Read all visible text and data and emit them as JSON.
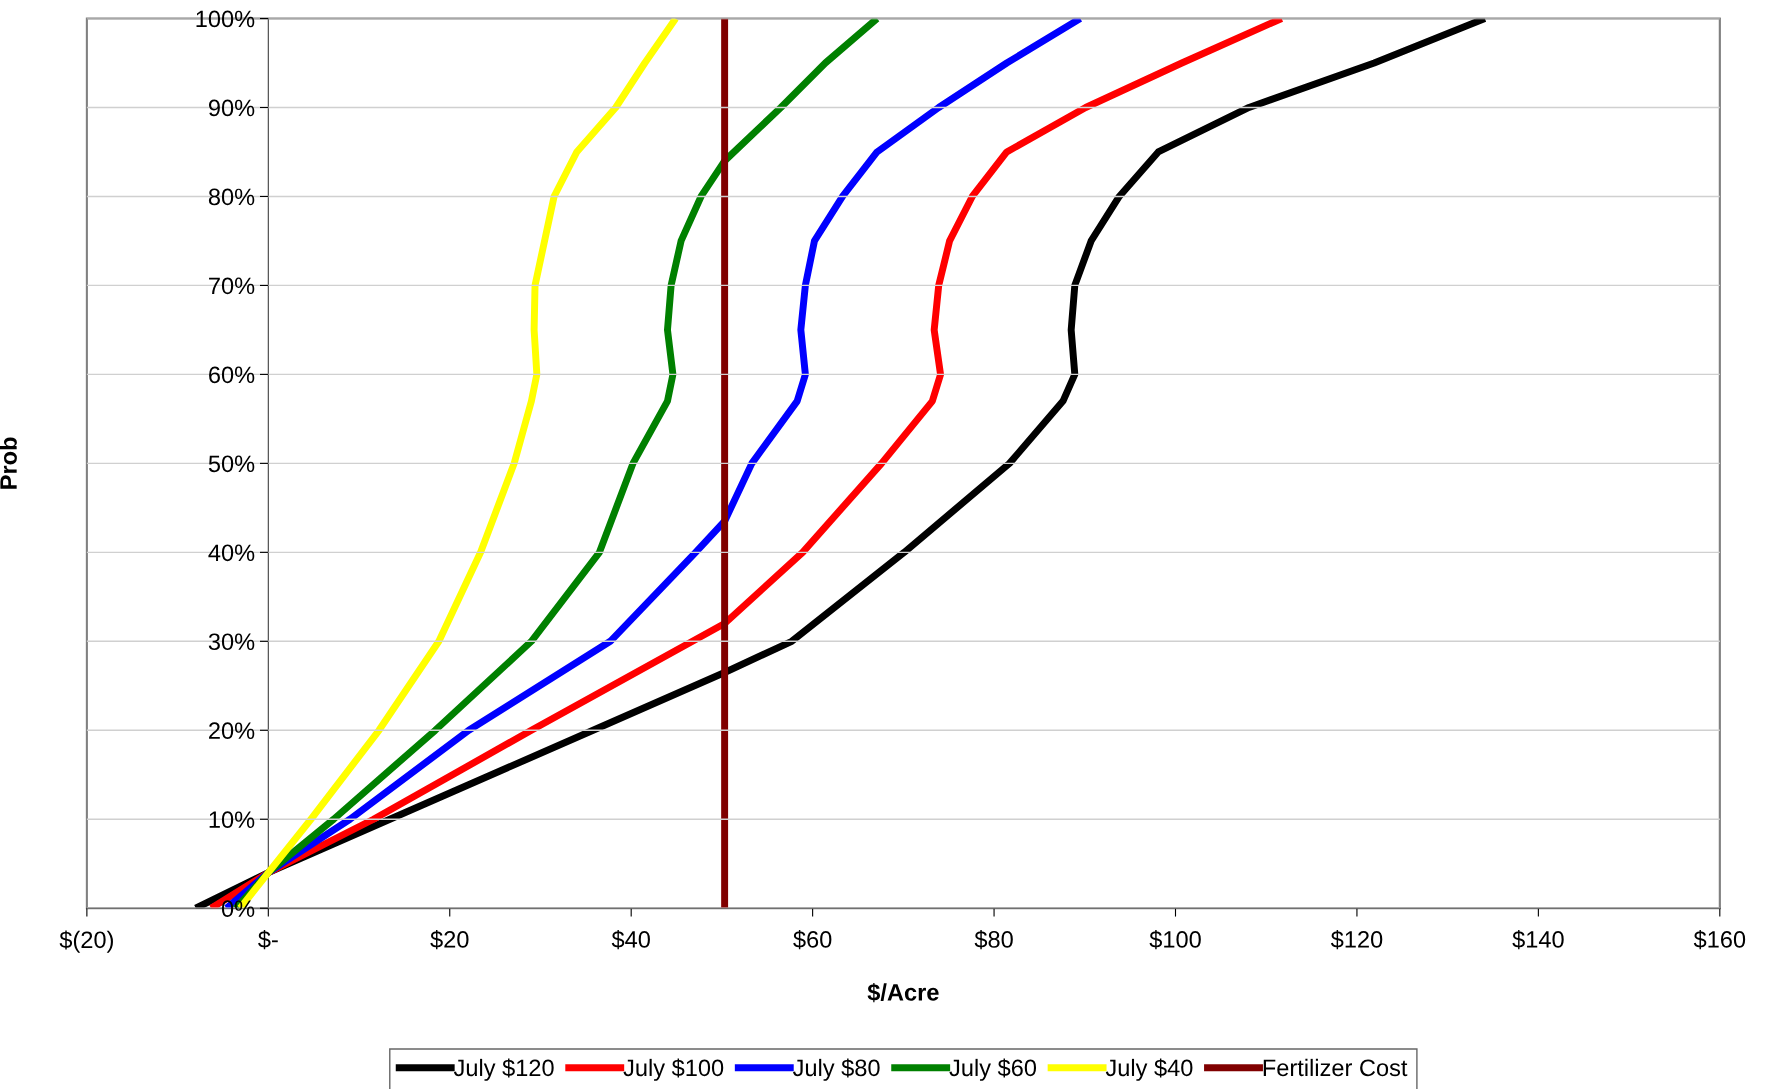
{
  "chart_data": {
    "type": "line",
    "xlabel": "$/Acre",
    "ylabel": "Prob",
    "xlim": [
      -20,
      160
    ],
    "ylim": [
      0,
      100
    ],
    "xticks": [
      {
        "value": -20,
        "label": "$(20)"
      },
      {
        "value": 0,
        "label": "$-"
      },
      {
        "value": 20,
        "label": "$20"
      },
      {
        "value": 40,
        "label": "$40"
      },
      {
        "value": 60,
        "label": "$60"
      },
      {
        "value": 80,
        "label": "$80"
      },
      {
        "value": 100,
        "label": "$100"
      },
      {
        "value": 120,
        "label": "$120"
      },
      {
        "value": 140,
        "label": "$140"
      },
      {
        "value": 160,
        "label": "$160"
      }
    ],
    "yticks": [
      {
        "value": 0,
        "label": "0%"
      },
      {
        "value": 10,
        "label": "10%"
      },
      {
        "value": 20,
        "label": "20%"
      },
      {
        "value": 30,
        "label": "30%"
      },
      {
        "value": 40,
        "label": "40%"
      },
      {
        "value": 50,
        "label": "50%"
      },
      {
        "value": 60,
        "label": "60%"
      },
      {
        "value": 70,
        "label": "70%"
      },
      {
        "value": 80,
        "label": "80%"
      },
      {
        "value": 90,
        "label": "90%"
      },
      {
        "value": 100,
        "label": "100%"
      }
    ],
    "grid": "y",
    "legend": "bottom",
    "marker": "none",
    "line_style": "solid",
    "series": [
      {
        "name": "July $120",
        "color": "#000000",
        "x": [
          -8.0,
          0,
          13.4,
          35.8,
          50.3,
          57.7,
          70.1,
          81.7,
          87.6,
          88.9,
          88.5,
          88.9,
          90.7,
          93.8,
          98.1,
          108.1,
          121.9,
          134.1
        ],
        "values": [
          0,
          4,
          10,
          20,
          26.5,
          30,
          40,
          50,
          57,
          60,
          65,
          70,
          75,
          80,
          85,
          90,
          95,
          100
        ]
      },
      {
        "name": "July $100",
        "color": "#ff0000",
        "x": [
          -6.3,
          0,
          11.6,
          29,
          50.3,
          58.9,
          67.6,
          73.2,
          74.1,
          73.4,
          73.9,
          75.1,
          77.6,
          81.4,
          90.1,
          100.7,
          111.7
        ],
        "values": [
          0,
          4,
          10,
          20,
          32,
          40,
          50,
          57,
          60,
          65,
          70,
          75,
          80,
          85,
          90,
          95,
          100
        ]
      },
      {
        "name": "July $80",
        "color": "#0000ff",
        "x": [
          -4.6,
          0,
          9,
          22.1,
          37.7,
          47.1,
          50.3,
          53.3,
          58.3,
          59.2,
          58.7,
          59.2,
          60.2,
          63.3,
          67.1,
          73.9,
          81.4,
          89.5
        ],
        "values": [
          0,
          4,
          10,
          20,
          30,
          40,
          43.5,
          50,
          57,
          60,
          65,
          70,
          75,
          80,
          85,
          90,
          95,
          100
        ]
      },
      {
        "name": "July $60",
        "color": "#008000",
        "x": [
          -3.6,
          0,
          7.2,
          18.4,
          29,
          36.5,
          40.2,
          44,
          44.6,
          44,
          44.4,
          45.5,
          47.7,
          50.3,
          56.5,
          61.4,
          67.1
        ],
        "values": [
          0,
          4,
          10,
          20,
          30,
          40,
          50,
          57,
          60,
          65,
          70,
          75,
          80,
          84,
          90,
          95,
          100
        ]
      },
      {
        "name": "July $40",
        "color": "#ffff00",
        "x": [
          -3.1,
          0,
          4.7,
          12.2,
          18.8,
          23.4,
          27.1,
          29,
          29.6,
          29.3,
          29.4,
          31.5,
          34,
          38.3,
          41.5,
          44.9
        ],
        "values": [
          0,
          4,
          10,
          20,
          30,
          40,
          50,
          57,
          60,
          65,
          70,
          80,
          85,
          90,
          95,
          100
        ]
      },
      {
        "name": "Fertilizer Cost",
        "color": "#800000",
        "x": [
          50.3,
          50.3
        ],
        "values": [
          0,
          100
        ]
      }
    ]
  }
}
